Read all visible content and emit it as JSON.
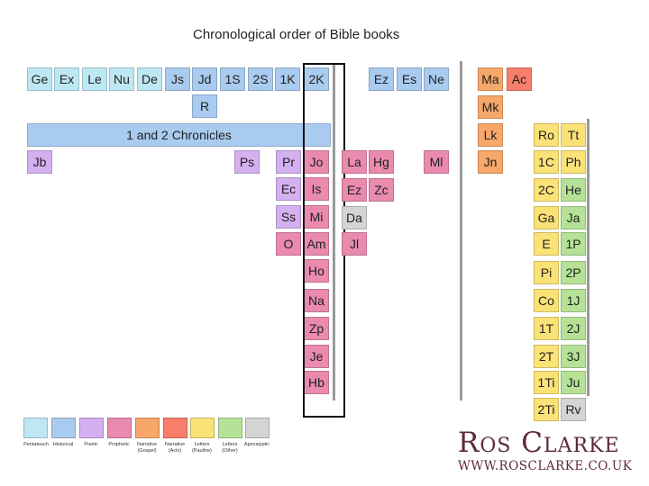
{
  "title": "Chronological order of Bible books",
  "chronicles_bar": "1 and 2 Chronicles",
  "colors": {
    "pentateuch": "#bde7f3",
    "historical": "#a9cbef",
    "poetic": "#d4b0f0",
    "prophetic": "#e98aae",
    "narrative_gospel": "#f7a76a",
    "narrative_acts": "#f77e6b",
    "letters_pauline": "#fbe277",
    "letters_other": "#b5e296",
    "apocalyptic": "#d4d4d4"
  },
  "books": {
    "ge": "Ge",
    "ex": "Ex",
    "le": "Le",
    "nu": "Nu",
    "de": "De",
    "js": "Js",
    "jd": "Jd",
    "s1": "1S",
    "s2": "2S",
    "k1": "1K",
    "k2": "2K",
    "r": "R",
    "ez": "Ez",
    "es": "Es",
    "ne": "Ne",
    "jb": "Jb",
    "ps": "Ps",
    "pr": "Pr",
    "ec": "Ec",
    "ss": "Ss",
    "o": "O",
    "jo": "Jo",
    "is": "Is",
    "mi": "Mi",
    "am": "Am",
    "ho": "Ho",
    "na": "Na",
    "zp": "Zp",
    "je": "Je",
    "hb": "Hb",
    "la": "La",
    "hg": "Hg",
    "ml": "Ml",
    "ezk": "Ez",
    "zc": "Zc",
    "da": "Da",
    "jl": "Jl",
    "ma": "Ma",
    "ac": "Ac",
    "mk": "Mk",
    "lk": "Lk",
    "jn": "Jn",
    "ro": "Ro",
    "tt": "Tt",
    "c1": "1C",
    "ph": "Ph",
    "c2": "2C",
    "he": "He",
    "ga": "Ga",
    "ja": "Ja",
    "e": "E",
    "p1": "1P",
    "pi": "Pi",
    "p2": "2P",
    "co": "Co",
    "j1": "1J",
    "t1": "1T",
    "j2": "2J",
    "t2": "2T",
    "j3": "3J",
    "ti1": "1Ti",
    "ju": "Ju",
    "ti2": "2Ti",
    "rv": "Rv"
  },
  "legend": {
    "pentateuch": "Pentateuch",
    "historical": "Historical",
    "poetic": "Poetic",
    "prophetic": "Prophetic",
    "narrative_gospel": "Narrative\n(Gospel)",
    "narrative_acts": "Narrative\n(Acts)",
    "letters_pauline": "Letters\n(Pauline)",
    "letters_other": "Letters\n(Other)",
    "apocalyptic": "Apocalyptic"
  },
  "brand": {
    "name": "Ros Clarke",
    "url": "WWW.ROSCLARKE.CO.UK"
  }
}
